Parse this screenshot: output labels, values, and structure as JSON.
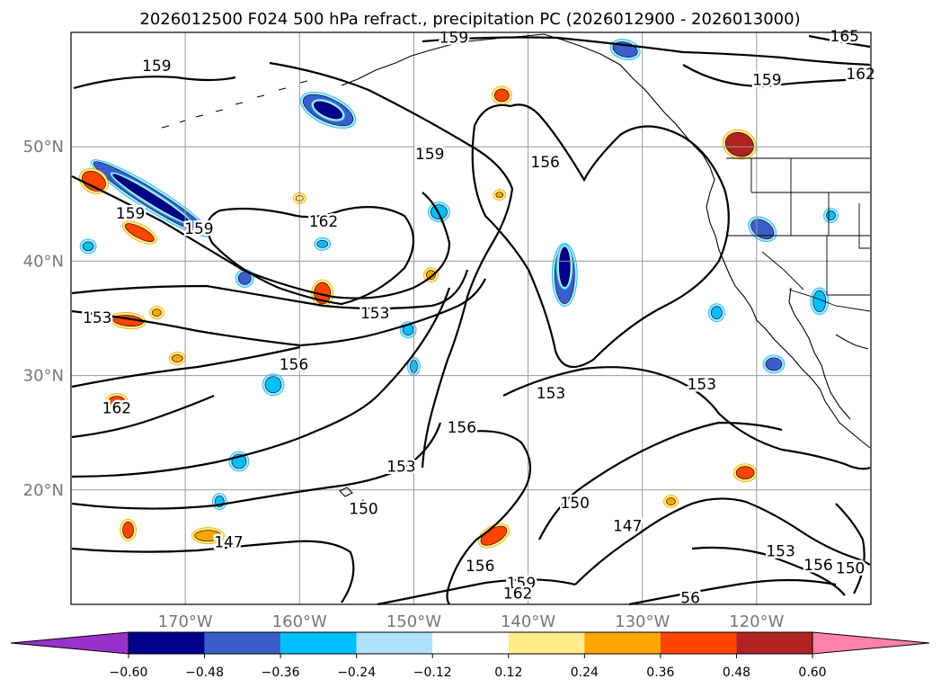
{
  "chart_data": {
    "type": "map-contour",
    "title": "2026012500 F024 500 hPa refract., precipitation PC (2026012900 - 2026013000)",
    "map": {
      "lon_range": [
        -180,
        -110
      ],
      "lat_range": [
        10,
        60
      ],
      "grid": true,
      "lon_ticks": [
        {
          "value": -170,
          "label": "170°W"
        },
        {
          "value": -160,
          "label": "160°W"
        },
        {
          "value": -150,
          "label": "150°W"
        },
        {
          "value": -140,
          "label": "140°W"
        },
        {
          "value": -130,
          "label": "130°W"
        },
        {
          "value": -120,
          "label": "120°W"
        }
      ],
      "lat_ticks": [
        {
          "value": 20,
          "label": "20°N"
        },
        {
          "value": 30,
          "label": "30°N"
        },
        {
          "value": 40,
          "label": "40°N"
        },
        {
          "value": 50,
          "label": "50°N"
        }
      ]
    },
    "colorbar": {
      "extend": "both",
      "levels": [
        -0.6,
        -0.48,
        -0.36,
        -0.24,
        -0.12,
        0.12,
        0.24,
        0.36,
        0.48,
        0.6
      ],
      "tick_labels": [
        "−0.60",
        "−0.48",
        "−0.36",
        "−0.24",
        "−0.12",
        "0.12",
        "0.24",
        "0.36",
        "0.48",
        "0.60"
      ],
      "colors": [
        "#9932cc",
        "#00008b",
        "#3a5fcd",
        "#00bfff",
        "#b0e2ff",
        "#ffffff",
        "#ffec8b",
        "#ffa500",
        "#ff4500",
        "#b22222",
        "#ff82ab"
      ]
    },
    "contour_labels": [
      {
        "text": "159",
        "lon": -172.5,
        "lat": 57.0
      },
      {
        "text": "159",
        "lon": -146.5,
        "lat": 59.5
      },
      {
        "text": "165",
        "lon": -112.3,
        "lat": 59.6
      },
      {
        "text": "162",
        "lon": -110.9,
        "lat": 56.3
      },
      {
        "text": "159",
        "lon": -119.1,
        "lat": 55.8
      },
      {
        "text": "159",
        "lon": -148.6,
        "lat": 49.3
      },
      {
        "text": "156",
        "lon": -138.5,
        "lat": 48.6
      },
      {
        "text": "162",
        "lon": -157.9,
        "lat": 43.4
      },
      {
        "text": "159",
        "lon": -174.8,
        "lat": 44.1
      },
      {
        "text": "159",
        "lon": -168.8,
        "lat": 42.8
      },
      {
        "text": "153",
        "lon": -177.7,
        "lat": 35.0
      },
      {
        "text": "153",
        "lon": -153.4,
        "lat": 35.4
      },
      {
        "text": "156",
        "lon": -160.5,
        "lat": 30.9
      },
      {
        "text": "162",
        "lon": -176.0,
        "lat": 27.1
      },
      {
        "text": "153",
        "lon": -138.0,
        "lat": 28.4
      },
      {
        "text": "153",
        "lon": -124.8,
        "lat": 29.2
      },
      {
        "text": "156",
        "lon": -145.8,
        "lat": 25.4
      },
      {
        "text": "153",
        "lon": -151.1,
        "lat": 22.0
      },
      {
        "text": "150",
        "lon": -154.4,
        "lat": 18.3
      },
      {
        "text": "150",
        "lon": -135.9,
        "lat": 18.8
      },
      {
        "text": "147",
        "lon": -166.2,
        "lat": 15.4
      },
      {
        "text": "147",
        "lon": -131.3,
        "lat": 16.8
      },
      {
        "text": "153",
        "lon": -117.9,
        "lat": 14.6
      },
      {
        "text": "156",
        "lon": -114.6,
        "lat": 13.4
      },
      {
        "text": "156",
        "lon": -144.2,
        "lat": 13.3
      },
      {
        "text": "159",
        "lon": -140.6,
        "lat": 11.8
      },
      {
        "text": "162",
        "lon": -140.9,
        "lat": 10.9
      },
      {
        "text": "150",
        "lon": -111.8,
        "lat": 13.1
      },
      {
        "text": "56",
        "lon": -125.8,
        "lat": 10.5
      }
    ]
  }
}
